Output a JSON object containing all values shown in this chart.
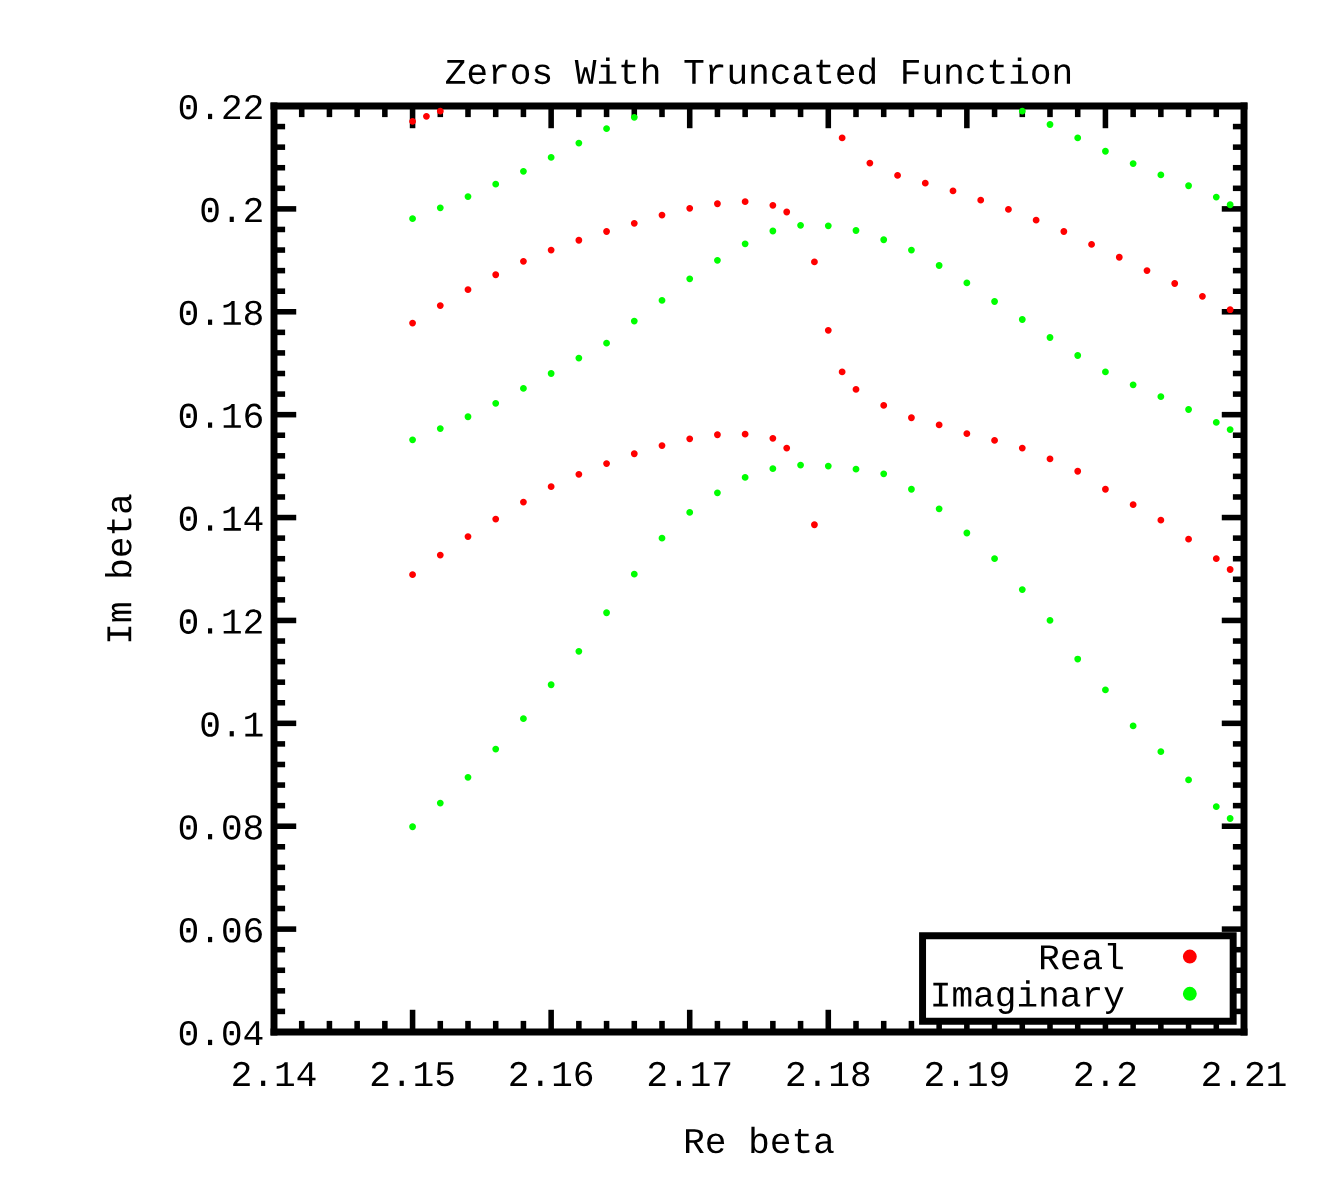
{
  "chart_data": {
    "type": "scatter",
    "title": "Zeros With Truncated Function",
    "xlabel": "Re beta",
    "ylabel": "Im beta",
    "xlim": [
      2.14,
      2.21
    ],
    "xticks": [
      2.14,
      2.15,
      2.16,
      2.17,
      2.18,
      2.19,
      2.2,
      2.21
    ],
    "ylim": [
      0.04,
      0.22
    ],
    "yticks": [
      0.04,
      0.06,
      0.08,
      0.1,
      0.12,
      0.14,
      0.16,
      0.18,
      0.2,
      0.22
    ],
    "grid": false,
    "legend": "bottom right",
    "marker": "circle",
    "series": [
      {
        "name": "Real",
        "color": "#ff0000",
        "x": [
          2.15,
          2.151,
          2.152,
          2.15,
          2.152,
          2.154,
          2.156,
          2.158,
          2.16,
          2.162,
          2.164,
          2.166,
          2.168,
          2.17,
          2.172,
          2.174,
          2.176,
          2.177,
          2.179,
          2.18,
          2.181,
          2.182,
          2.184,
          2.186,
          2.188,
          2.19,
          2.192,
          2.194,
          2.196,
          2.198,
          2.2,
          2.202,
          2.204,
          2.206,
          2.208,
          2.209,
          2.181,
          2.183,
          2.185,
          2.187,
          2.189,
          2.191,
          2.193,
          2.195,
          2.197,
          2.199,
          2.201,
          2.203,
          2.205,
          2.207,
          2.209,
          2.15,
          2.152,
          2.154,
          2.156,
          2.158,
          2.16,
          2.162,
          2.164,
          2.166,
          2.168,
          2.17,
          2.172,
          2.174,
          2.176,
          2.177,
          2.179
        ],
        "values": [
          0.217,
          0.218,
          0.219,
          0.1778,
          0.1812,
          0.1843,
          0.1872,
          0.1898,
          0.192,
          0.1939,
          0.1956,
          0.1972,
          0.1988,
          0.2001,
          0.201,
          0.2014,
          0.2007,
          0.1994,
          0.1897,
          0.1764,
          0.1683,
          0.1649,
          0.1618,
          0.1594,
          0.158,
          0.1563,
          0.155,
          0.1535,
          0.1514,
          0.149,
          0.1455,
          0.1425,
          0.1395,
          0.1358,
          0.132,
          0.1299,
          0.2138,
          0.2089,
          0.2065,
          0.205,
          0.2035,
          0.2017,
          0.1999,
          0.1978,
          0.1956,
          0.1931,
          0.1906,
          0.188,
          0.1855,
          0.183,
          0.1804,
          0.1289,
          0.1327,
          0.1363,
          0.1397,
          0.143,
          0.146,
          0.1484,
          0.1505,
          0.1524,
          0.154,
          0.1553,
          0.1561,
          0.1562,
          0.1554,
          0.1535,
          0.1386
        ]
      },
      {
        "name": "Imaginary",
        "color": "#00ff00",
        "x": [
          2.15,
          2.152,
          2.154,
          2.156,
          2.158,
          2.16,
          2.162,
          2.164,
          2.166,
          2.15,
          2.152,
          2.154,
          2.156,
          2.158,
          2.16,
          2.162,
          2.164,
          2.166,
          2.168,
          2.17,
          2.172,
          2.174,
          2.176,
          2.178,
          2.18,
          2.182,
          2.184,
          2.186,
          2.188,
          2.19,
          2.192,
          2.194,
          2.196,
          2.198,
          2.2,
          2.202,
          2.204,
          2.206,
          2.208,
          2.209,
          2.15,
          2.152,
          2.154,
          2.156,
          2.158,
          2.16,
          2.162,
          2.164,
          2.166,
          2.168,
          2.17,
          2.172,
          2.174,
          2.176,
          2.178,
          2.18,
          2.182,
          2.184,
          2.186,
          2.188,
          2.19,
          2.192,
          2.194,
          2.196,
          2.198,
          2.2,
          2.202,
          2.204,
          2.206,
          2.208,
          2.209,
          2.194,
          2.196,
          2.198,
          2.2,
          2.202,
          2.204,
          2.206,
          2.208,
          2.209
        ],
        "values": [
          0.1981,
          0.2002,
          0.2024,
          0.2048,
          0.2073,
          0.21,
          0.2128,
          0.2156,
          0.2178,
          0.1551,
          0.1573,
          0.1596,
          0.1622,
          0.1651,
          0.168,
          0.171,
          0.1739,
          0.1782,
          0.1822,
          0.1864,
          0.19,
          0.1932,
          0.1957,
          0.1968,
          0.1967,
          0.1958,
          0.194,
          0.192,
          0.189,
          0.1856,
          0.182,
          0.1785,
          0.175,
          0.1715,
          0.1683,
          0.1658,
          0.1635,
          0.161,
          0.1585,
          0.1571,
          0.0799,
          0.0845,
          0.0895,
          0.095,
          0.1009,
          0.1075,
          0.114,
          0.1215,
          0.129,
          0.136,
          0.141,
          0.1448,
          0.1478,
          0.1495,
          0.1502,
          0.15,
          0.1494,
          0.1485,
          0.1455,
          0.1417,
          0.137,
          0.132,
          0.126,
          0.12,
          0.1125,
          0.1065,
          0.0995,
          0.0945,
          0.089,
          0.0838,
          0.0815,
          0.219,
          0.2164,
          0.2138,
          0.2112,
          0.2088,
          0.2066,
          0.2045,
          0.2023,
          0.2008
        ]
      }
    ]
  }
}
